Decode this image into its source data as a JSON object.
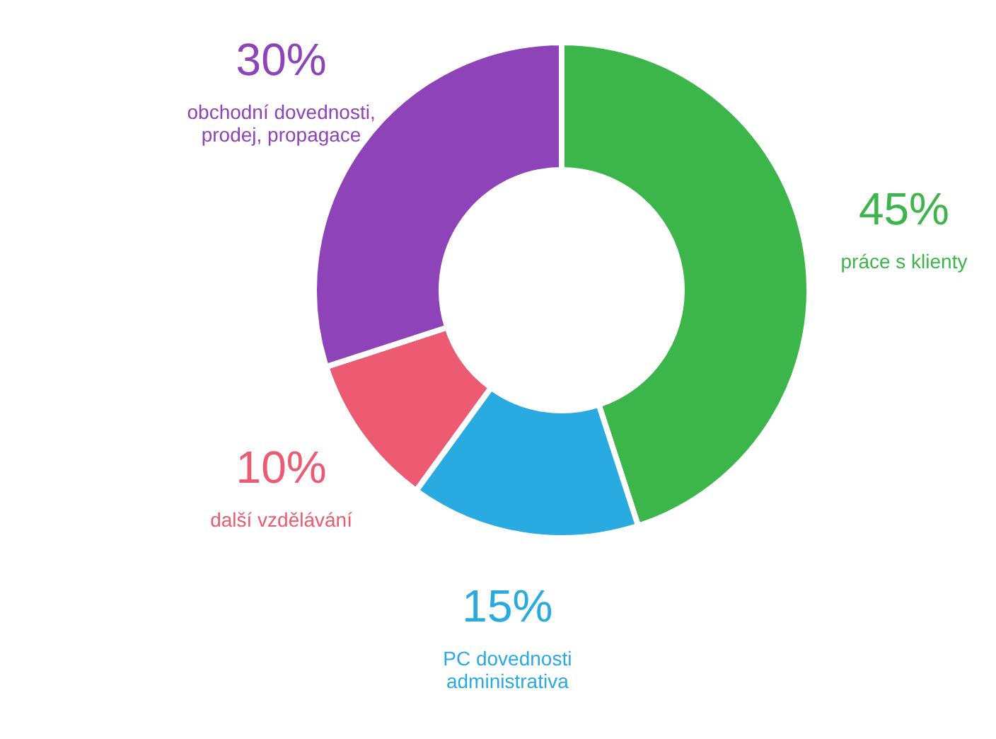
{
  "chart_data": {
    "type": "donut",
    "categories": [
      "práce s klienty",
      "PC dovednosti\nadministrativa",
      "další vzdělávání",
      "obchodní dovednosti,\nprodej, propagace"
    ],
    "values": [
      45,
      15,
      10,
      30
    ],
    "value_labels": [
      "45%",
      "15%",
      "10%",
      "30%"
    ],
    "colors": [
      "#3cb54a",
      "#29abe2",
      "#ec5b72",
      "#8e44b8"
    ]
  }
}
